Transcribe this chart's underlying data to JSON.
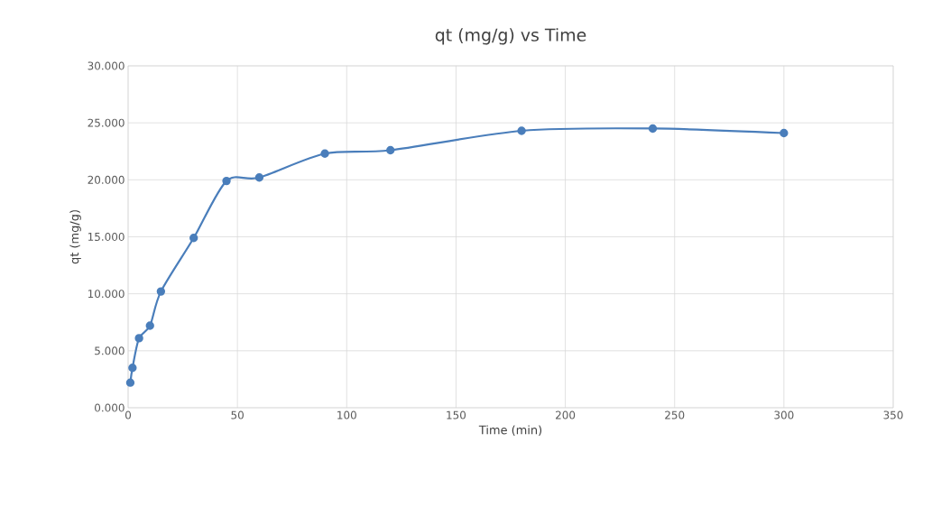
{
  "chart_data": {
    "type": "line",
    "title": "qt (mg/g) vs Time",
    "xlabel": "Time (min)",
    "ylabel": "qt (mg/g)",
    "x": [
      1,
      2,
      5,
      10,
      15,
      30,
      45,
      60,
      90,
      120,
      180,
      240,
      300
    ],
    "series": [
      {
        "color": "#4a7ebb",
        "values": [
          2.2,
          3.5,
          6.1,
          7.2,
          10.2,
          14.9,
          19.9,
          20.2,
          22.3,
          22.6,
          24.3,
          24.5,
          24.1
        ]
      }
    ],
    "xlim": [
      0,
      350
    ],
    "xticks": [
      0,
      50,
      100,
      150,
      200,
      250,
      300,
      350
    ],
    "ylim": [
      0,
      30
    ],
    "yticks": [
      {
        "value": 0,
        "label": "0.000"
      },
      {
        "value": 5,
        "label": "5.000"
      },
      {
        "value": 10,
        "label": "10.000"
      },
      {
        "value": 15,
        "label": "15.000"
      },
      {
        "value": 20,
        "label": "20.000"
      },
      {
        "value": 25,
        "label": "25.000"
      },
      {
        "value": 30,
        "label": "30.000"
      }
    ],
    "grid": true,
    "marker": "circle",
    "line_style": "solid"
  }
}
